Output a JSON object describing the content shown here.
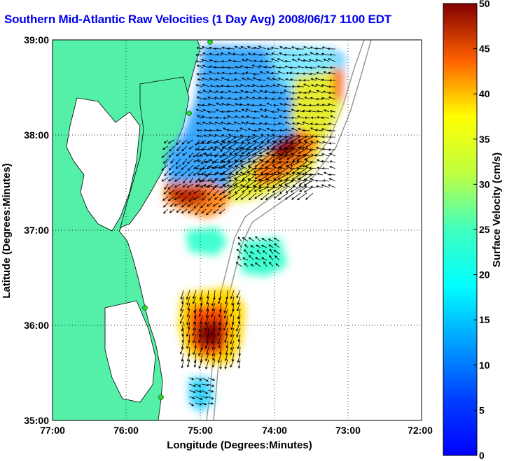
{
  "title": "Southern Mid-Atlantic Raw Velocities (1 Day Avg) 2008/06/17 1100 EDT",
  "x_axis": {
    "label": "Longitude (Degrees:Minutes)",
    "ticks": [
      "77:00",
      "76:00",
      "75:00",
      "74:00",
      "73:00",
      "72:00"
    ],
    "range": [
      -77,
      -72
    ]
  },
  "y_axis": {
    "label": "Latitude (Degrees:Minutes)",
    "ticks": [
      "39:00",
      "38:00",
      "37:00",
      "36:00",
      "35:00"
    ],
    "range": [
      35,
      39
    ]
  },
  "colorbar": {
    "label": "Surface Velocity (cm/s)",
    "ticks": [
      "0",
      "5",
      "10",
      "15",
      "20",
      "25",
      "30",
      "35",
      "40",
      "45",
      "50"
    ],
    "range": [
      0,
      50
    ],
    "colormap": "jet"
  },
  "colors": {
    "land": "#55f0a8",
    "title": "#0000ee",
    "grid": "#000000",
    "coastline": "#000000",
    "isobath": "#999999",
    "station": "#22dd22"
  },
  "chart_data": {
    "type": "heatmap",
    "description_units": "cm/s",
    "zones": [
      {
        "lon": -74.5,
        "lat": 38.6,
        "speed": 10
      },
      {
        "lon": -75.0,
        "lat": 38.2,
        "speed": 12
      },
      {
        "lon": -73.8,
        "lat": 38.3,
        "speed": 28
      },
      {
        "lon": -74.0,
        "lat": 37.9,
        "speed": 40
      },
      {
        "lon": -75.3,
        "lat": 37.4,
        "speed": 33
      },
      {
        "lon": -75.1,
        "lat": 36.0,
        "speed": 42
      },
      {
        "lon": -74.3,
        "lat": 36.8,
        "speed": 15
      },
      {
        "lon": -74.9,
        "lat": 35.3,
        "speed": 12
      }
    ]
  }
}
